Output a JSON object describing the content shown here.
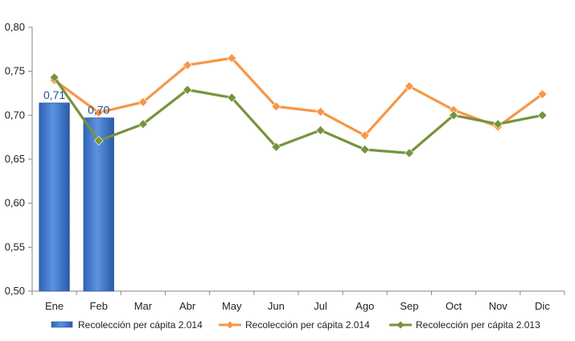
{
  "chart_data": {
    "type": "bar+line",
    "categories": [
      "Ene",
      "Feb",
      "Mar",
      "Abr",
      "May",
      "Jun",
      "Jul",
      "Ago",
      "Sep",
      "Oct",
      "Nov",
      "Dic"
    ],
    "bar_series": {
      "name": "Recolección per cápita 2.014",
      "values": [
        0.714,
        0.697
      ],
      "data_labels": [
        "0,71",
        "0,70"
      ],
      "color": "#4a7fd0"
    },
    "line_series": [
      {
        "name": "Recolección per cápita 2.014",
        "values": [
          0.74,
          0.703,
          0.715,
          0.757,
          0.765,
          0.71,
          0.704,
          0.677,
          0.733,
          0.706,
          0.687,
          0.724
        ],
        "color": "#f79646"
      },
      {
        "name": "Recolección per cápita 2.013",
        "values": [
          0.743,
          0.671,
          0.69,
          0.729,
          0.72,
          0.664,
          0.683,
          0.661,
          0.657,
          0.7,
          0.69,
          0.7
        ],
        "color": "#77933c"
      }
    ],
    "yticks": [
      "0,50",
      "0,55",
      "0,60",
      "0,65",
      "0,70",
      "0,75",
      "0,80"
    ],
    "ylim": [
      0.5,
      0.8
    ],
    "legend_position": "bottom",
    "grid": false
  }
}
